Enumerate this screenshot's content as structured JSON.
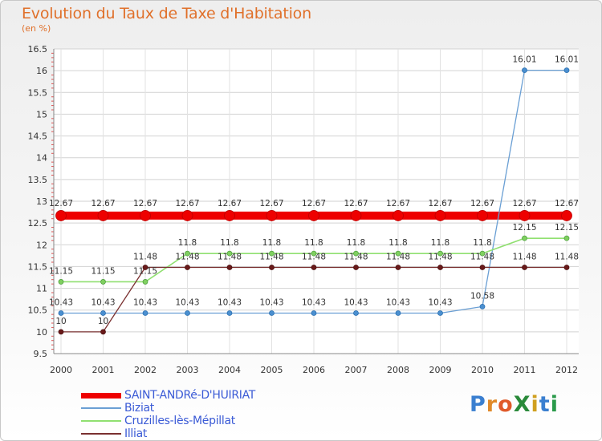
{
  "header": {
    "title": "Evolution du Taux de Taxe d'Habitation",
    "unit": "(en %)"
  },
  "logo": {
    "text": "ProXiti",
    "letters": [
      {
        "ch": "P",
        "color": "#3a7fd0"
      },
      {
        "ch": "r",
        "color": "#e08a2a"
      },
      {
        "ch": "o",
        "color": "#e05a2a"
      },
      {
        "ch": "X",
        "color": "#2a8a3a"
      },
      {
        "ch": "i",
        "color": "#d0a020"
      },
      {
        "ch": "t",
        "color": "#3a7fd0"
      },
      {
        "ch": "i",
        "color": "#2a9a4a"
      }
    ]
  },
  "chart_data": {
    "type": "line",
    "title": "Evolution du Taux de Taxe d'Habitation",
    "ylabel": "(en %)",
    "xlabel": "",
    "categories": [
      "2000",
      "2001",
      "2002",
      "2003",
      "2004",
      "2005",
      "2006",
      "2007",
      "2008",
      "2009",
      "2010",
      "2011",
      "2012"
    ],
    "ylim": [
      9.5,
      16.5
    ],
    "yticks": [
      "9.5",
      "10",
      "10.5",
      "11",
      "11.5",
      "12",
      "12.5",
      "13",
      "13.5",
      "14",
      "14.5",
      "15",
      "15.5",
      "16",
      "16.5"
    ],
    "grid": true,
    "legend_position": "bottom-left",
    "series": [
      {
        "name": "SAINT-ANDRé-D'HUIRIAT",
        "color": "#ee0000",
        "values": [
          12.67,
          12.67,
          12.67,
          12.67,
          12.67,
          12.67,
          12.67,
          12.67,
          12.67,
          12.67,
          12.67,
          12.67,
          12.67
        ],
        "labels": [
          "12.67",
          "12.67",
          "12.67",
          "12.67",
          "12.67",
          "12.67",
          "12.67",
          "12.67",
          "12.67",
          "12.67",
          "12.67",
          "12.67",
          "12.67"
        ]
      },
      {
        "name": "Biziat",
        "color": "#6a9fd4",
        "values": [
          10.43,
          10.43,
          10.43,
          10.43,
          10.43,
          10.43,
          10.43,
          10.43,
          10.43,
          10.43,
          10.58,
          16.01,
          16.01
        ],
        "labels": [
          "10.43",
          "10.43",
          "10.43",
          "10.43",
          "10.43",
          "10.43",
          "10.43",
          "10.43",
          "10.43",
          "10.43",
          "10.58",
          "16.01",
          "16.01"
        ]
      },
      {
        "name": "Cruzilles-lès-Mépillat",
        "color": "#90e070",
        "values": [
          11.15,
          11.15,
          11.15,
          11.8,
          11.8,
          11.8,
          11.8,
          11.8,
          11.8,
          11.8,
          11.8,
          12.15,
          12.15
        ],
        "labels": [
          "11.15",
          "11.15",
          "11.15",
          "11.8",
          "11.8",
          "11.8",
          "11.8",
          "11.8",
          "11.8",
          "11.8",
          "11.8",
          "12.15",
          "12.15"
        ]
      },
      {
        "name": "Illiat",
        "color": "#7a3030",
        "values": [
          10,
          10,
          11.48,
          11.48,
          11.48,
          11.48,
          11.48,
          11.48,
          11.48,
          11.48,
          11.48,
          11.48,
          11.48
        ],
        "labels": [
          "10",
          "10",
          "11.48",
          "11.48",
          "11.48",
          "11.48",
          "11.48",
          "11.48",
          "11.48",
          "11.48",
          "11.48",
          "11.48",
          "11.48"
        ]
      }
    ]
  }
}
